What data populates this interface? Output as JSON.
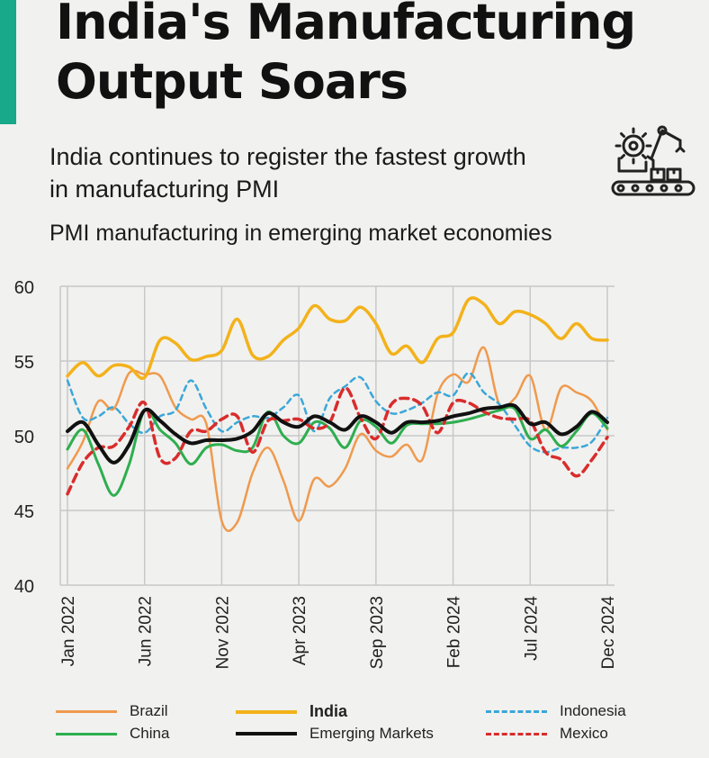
{
  "header": {
    "title_line1": "India's Manufacturing",
    "title_line2": "Output Soars",
    "subtitle_line1": "India continues to register the fastest growth",
    "subtitle_line2": "in manufacturing PMI",
    "chart_caption": "PMI manufacturing in emerging market economies",
    "accent_color": "#17a98a"
  },
  "icon": {
    "name": "factory-robot-arm-icon"
  },
  "chart_data": {
    "type": "line",
    "title": "PMI manufacturing in emerging market economies",
    "xlabel": "",
    "ylabel": "",
    "ylim": [
      40,
      60
    ],
    "yticks": [
      40,
      45,
      50,
      55,
      60
    ],
    "x": [
      "Jan 2022",
      "Feb 2022",
      "Mar 2022",
      "Apr 2022",
      "May 2022",
      "Jun 2022",
      "Jul 2022",
      "Aug 2022",
      "Sep 2022",
      "Oct 2022",
      "Nov 2022",
      "Dec 2022",
      "Jan 2023",
      "Feb 2023",
      "Mar 2023",
      "Apr 2023",
      "May 2023",
      "Jun 2023",
      "Jul 2023",
      "Aug 2023",
      "Sep 2023",
      "Oct 2023",
      "Nov 2023",
      "Dec 2023",
      "Jan 2024",
      "Feb 2024",
      "Mar 2024",
      "Apr 2024",
      "May 2024",
      "Jun 2024",
      "Jul 2024",
      "Aug 2024",
      "Sep 2024",
      "Oct 2024",
      "Nov 2024",
      "Dec 2024"
    ],
    "tick_labels": [
      "Jan 2022",
      "Jun 2022",
      "Nov 2022",
      "Apr 2023",
      "Sep 2023",
      "Feb 2024",
      "Jul 2024",
      "Dec 2024"
    ],
    "tick_indices": [
      0,
      5,
      10,
      15,
      20,
      25,
      30,
      35
    ],
    "series": [
      {
        "name": "Brazil",
        "key": "brazil",
        "color": "#ef9a4e",
        "dash": "",
        "width": 2.5,
        "values": [
          47.8,
          49.6,
          52.3,
          51.8,
          54.2,
          54.1,
          54.0,
          51.9,
          51.1,
          50.8,
          44.3,
          44.2,
          47.5,
          49.2,
          47.0,
          44.3,
          47.1,
          46.6,
          47.8,
          50.1,
          49.0,
          48.6,
          49.4,
          48.4,
          52.8,
          54.1,
          53.6,
          55.9,
          52.1,
          52.5,
          54.0,
          50.4,
          53.2,
          52.9,
          52.3,
          50.4
        ],
        "legend_col": 0,
        "legend_row": 0
      },
      {
        "name": "India",
        "key": "india",
        "color": "#f3b21b",
        "dash": "",
        "width": 3.5,
        "values": [
          54.0,
          54.9,
          54.0,
          54.7,
          54.6,
          53.9,
          56.4,
          56.2,
          55.1,
          55.3,
          55.7,
          57.8,
          55.4,
          55.3,
          56.4,
          57.2,
          58.7,
          57.8,
          57.7,
          58.6,
          57.5,
          55.5,
          56.0,
          54.9,
          56.5,
          56.9,
          59.1,
          58.8,
          57.5,
          58.3,
          58.1,
          57.5,
          56.5,
          57.5,
          56.5,
          56.4
        ],
        "legend_col": 1,
        "legend_row": 0
      },
      {
        "name": "Indonesia",
        "key": "indonesia",
        "color": "#3aa7d8",
        "dash": "6,5",
        "width": 2.5,
        "values": [
          53.7,
          51.2,
          51.3,
          51.9,
          50.8,
          50.2,
          51.3,
          51.7,
          53.7,
          51.8,
          50.3,
          50.9,
          51.3,
          51.2,
          51.9,
          52.7,
          50.3,
          52.5,
          53.3,
          53.9,
          52.3,
          51.5,
          51.7,
          52.2,
          52.9,
          52.7,
          54.2,
          52.9,
          52.1,
          50.7,
          49.3,
          48.9,
          49.2,
          49.2,
          49.6,
          51.2
        ],
        "legend_col": 2,
        "legend_row": 0
      },
      {
        "name": "China",
        "key": "china",
        "color": "#2eae4f",
        "dash": "",
        "width": 3,
        "values": [
          49.1,
          50.4,
          48.1,
          46.0,
          48.1,
          51.7,
          50.4,
          49.5,
          48.1,
          49.2,
          49.4,
          49.0,
          49.2,
          51.6,
          50.0,
          49.5,
          50.9,
          50.5,
          49.2,
          51.0,
          50.6,
          49.5,
          50.7,
          50.8,
          50.8,
          50.9,
          51.1,
          51.4,
          51.7,
          51.8,
          49.8,
          50.4,
          49.3,
          50.3,
          51.5,
          50.5
        ],
        "legend_col": 0,
        "legend_row": 1
      },
      {
        "name": "Emerging Markets",
        "key": "em",
        "color": "#111111",
        "dash": "",
        "width": 4,
        "values": [
          50.3,
          50.9,
          49.4,
          48.2,
          49.4,
          51.7,
          51.0,
          50.1,
          49.5,
          49.7,
          49.7,
          49.8,
          50.3,
          51.5,
          50.9,
          50.6,
          51.3,
          50.9,
          50.4,
          51.3,
          50.9,
          50.2,
          50.9,
          50.9,
          51.0,
          51.3,
          51.5,
          51.8,
          51.9,
          52.0,
          50.8,
          50.9,
          50.1,
          50.6,
          51.6,
          50.9
        ],
        "legend_col": 1,
        "legend_row": 1
      },
      {
        "name": "Mexico",
        "key": "mexico",
        "color": "#d92c2c",
        "dash": "9,6",
        "width": 3.5,
        "values": [
          46.1,
          48.2,
          49.2,
          49.3,
          50.6,
          52.2,
          48.5,
          48.5,
          50.3,
          50.3,
          51.1,
          51.3,
          48.9,
          51.0,
          51.0,
          51.1,
          50.5,
          50.9,
          53.2,
          51.2,
          49.8,
          52.1,
          52.5,
          52.0,
          50.2,
          52.2,
          52.2,
          51.6,
          51.2,
          51.1,
          51.0,
          48.9,
          48.4,
          47.3,
          48.4,
          49.9
        ],
        "legend_col": 2,
        "legend_row": 1
      }
    ],
    "grid": true,
    "legend_position": "bottom"
  }
}
